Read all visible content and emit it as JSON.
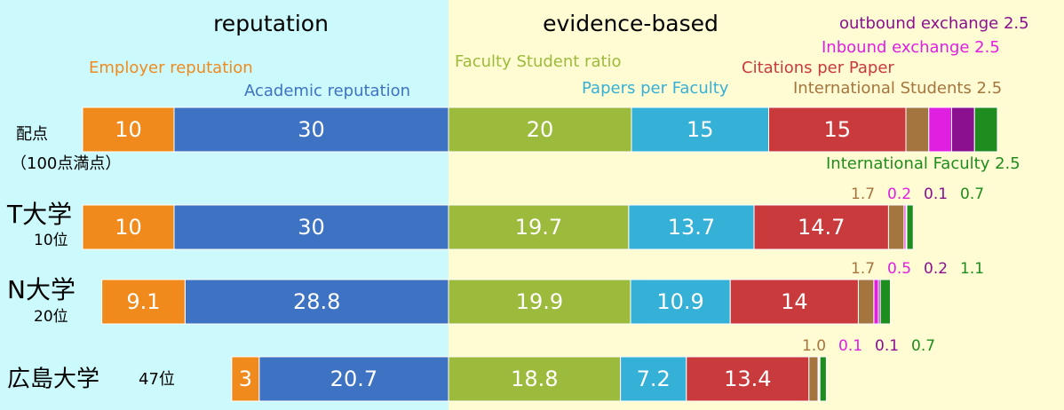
{
  "chart_data": {
    "type": "bar",
    "left_heading": "reputation",
    "right_heading": "evidence-based",
    "categories": [
      "配点",
      "T大学",
      "N大学",
      "広島大学"
    ],
    "rank_labels": [
      "（100点満点）",
      "10位",
      "20位",
      "47位"
    ],
    "series": [
      {
        "name": "Employer reputation",
        "color": "#f08a1c",
        "side": "left",
        "values": [
          10,
          10,
          9.1,
          3
        ]
      },
      {
        "name": "Academic reputation",
        "color": "#3e72c2",
        "side": "left",
        "values": [
          30,
          30,
          28.8,
          20.7
        ]
      },
      {
        "name": "Faculty Student ratio",
        "color": "#9cbb3c",
        "side": "right",
        "values": [
          20,
          19.7,
          19.9,
          18.8
        ]
      },
      {
        "name": "Papers per Faculty",
        "color": "#35b0d6",
        "side": "right",
        "values": [
          15,
          13.7,
          10.9,
          7.2
        ]
      },
      {
        "name": "Citations per Paper",
        "color": "#c93a3c",
        "side": "right",
        "values": [
          15,
          14.7,
          14,
          13.4
        ]
      },
      {
        "name": "International Students 2.5",
        "color": "#a57540",
        "side": "right",
        "values": [
          2.5,
          1.7,
          1.7,
          1.0
        ],
        "value_labels": [
          null,
          "1.7",
          "1.7",
          "1.0"
        ]
      },
      {
        "name": "Inbound exchange 2.5",
        "color": "#e020e0",
        "side": "right",
        "values": [
          2.5,
          0.2,
          0.5,
          0.1
        ]
      },
      {
        "name": "outbound exchange 2.5",
        "color": "#8a1090",
        "side": "right",
        "values": [
          2.5,
          0.1,
          0.2,
          0.1
        ]
      },
      {
        "name": "International Faculty 2.5",
        "color": "#1f8c1f",
        "side": "right",
        "values": [
          2.5,
          0.7,
          1.1,
          0.7
        ]
      }
    ]
  }
}
